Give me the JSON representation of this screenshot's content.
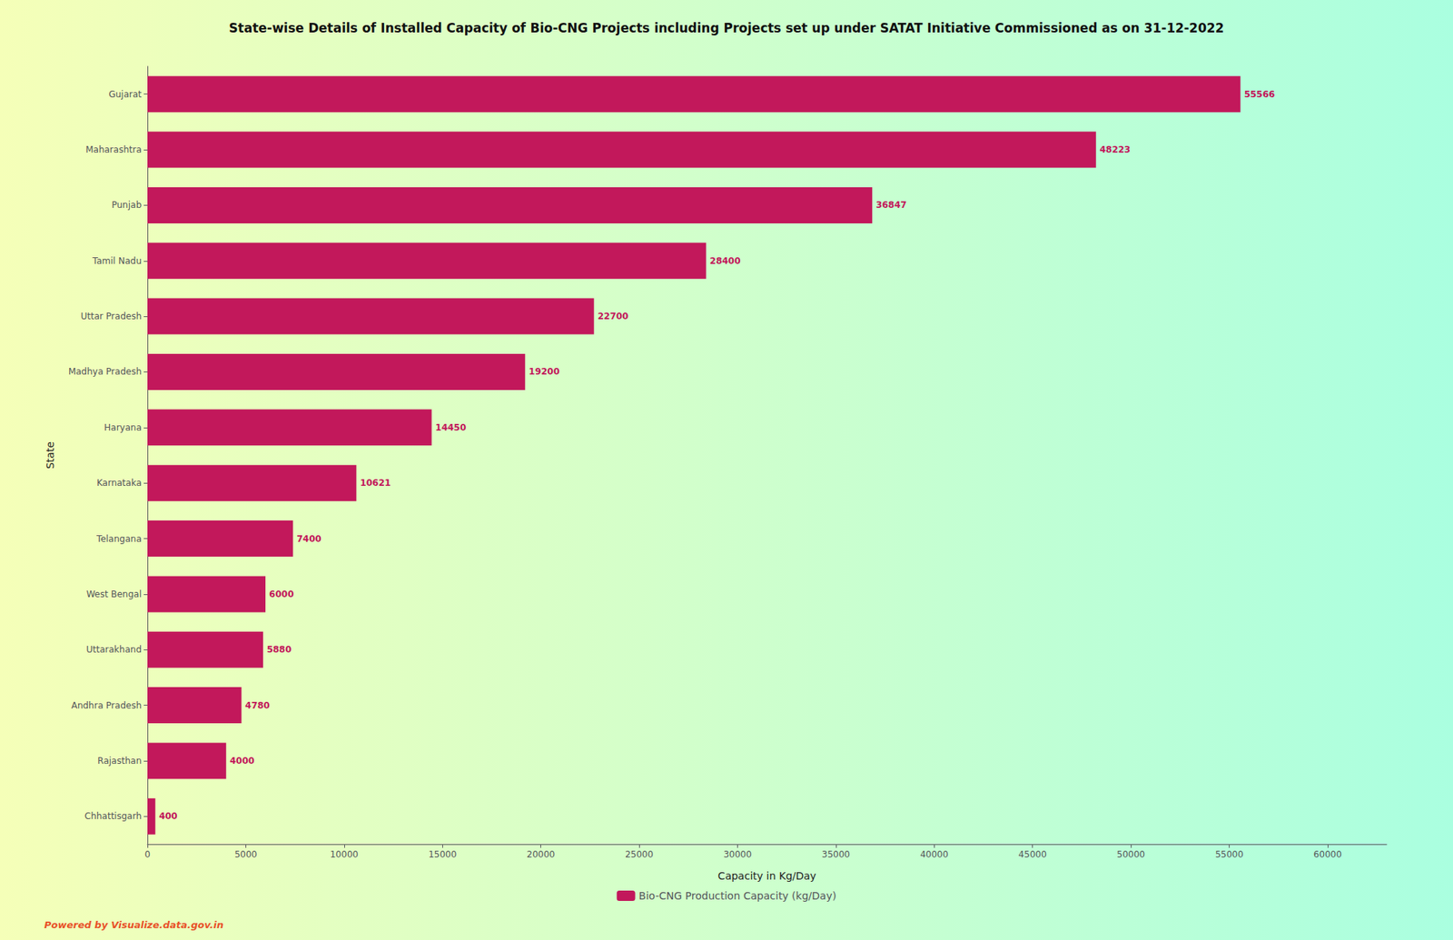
{
  "chart_data": {
    "type": "bar",
    "orientation": "horizontal",
    "title": "State-wise Details of Installed Capacity of Bio-CNG Projects including Projects set up under SATAT Initiative Commissioned as on 31-12-2022",
    "xlabel": "Capacity in Kg/Day",
    "ylabel": "State",
    "categories": [
      "Gujarat",
      "Maharashtra",
      "Punjab",
      "Tamil Nadu",
      "Uttar Pradesh",
      "Madhya Pradesh",
      "Haryana",
      "Karnataka",
      "Telangana",
      "West Bengal",
      "Uttarakhand",
      "Andhra Pradesh",
      "Rajasthan",
      "Chhattisgarh"
    ],
    "series": [
      {
        "name": "Bio-CNG Production Capacity (kg/Day)",
        "color": "#c2185b",
        "values": [
          55566,
          48223,
          36847,
          28400,
          22700,
          19200,
          14450,
          10621,
          7400,
          6000,
          5880,
          4780,
          4000,
          400
        ]
      }
    ],
    "xlim": [
      0,
      63000
    ],
    "xticks": [
      0,
      5000,
      10000,
      15000,
      20000,
      25000,
      30000,
      35000,
      40000,
      45000,
      50000,
      55000,
      60000
    ],
    "data_labels": true,
    "legend": "bottom",
    "grid": false,
    "annotations": [
      "Powered by Visualize.data.gov.in"
    ]
  }
}
